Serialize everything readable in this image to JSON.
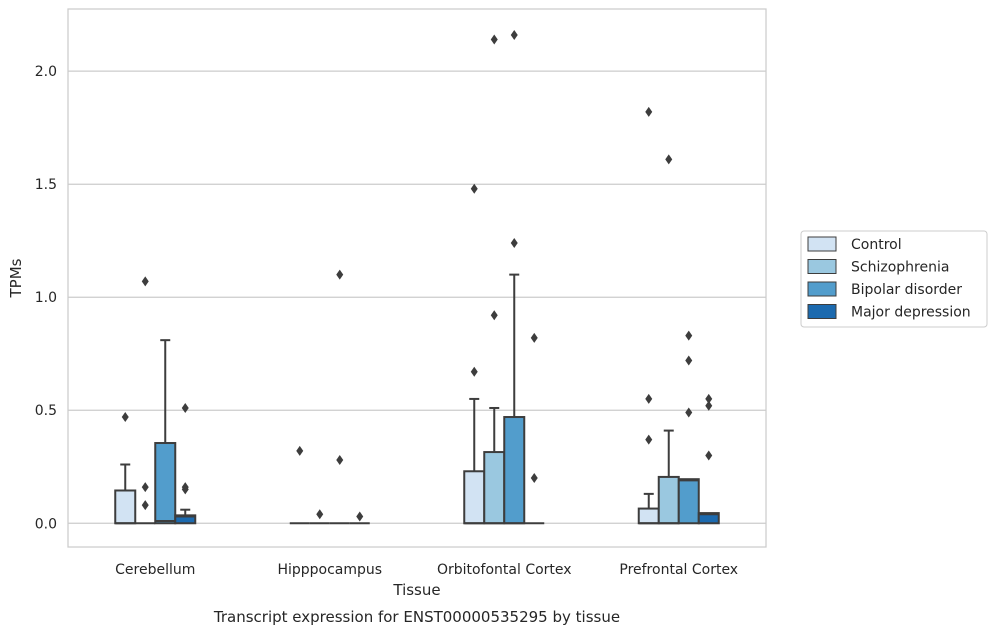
{
  "chart_data": {
    "type": "box",
    "title": "",
    "caption": "Transcript expression for ENST00000535295 by tissue",
    "xlabel": "Tissue",
    "ylabel": "TPMs",
    "ylim": [
      -0.105,
      2.275
    ],
    "yticks": [
      "0.0",
      "0.5",
      "1.0",
      "1.5",
      "2.0"
    ],
    "ytick_values": [
      0,
      0.5,
      1.0,
      1.5,
      2.0
    ],
    "grid": true,
    "legend_position": "right-center",
    "categories": [
      "Cerebellum",
      "Hipppocampus",
      "Orbitofontal Cortex",
      "Prefrontal Cortex"
    ],
    "series": [
      {
        "name": "Control",
        "color": "#d2e3f3",
        "boxes": [
          {
            "q1": 0,
            "median": 0,
            "q3": 0.145,
            "whisker_low": 0,
            "whisker_high": 0.26,
            "outliers": [
              0.47
            ]
          },
          {
            "q1": 0,
            "median": 0,
            "q3": 0,
            "whisker_low": 0,
            "whisker_high": 0,
            "outliers": [
              0.32
            ]
          },
          {
            "q1": 0,
            "median": 0,
            "q3": 0.23,
            "whisker_low": 0,
            "whisker_high": 0.55,
            "outliers": [
              0.67,
              1.48
            ]
          },
          {
            "q1": 0,
            "median": 0,
            "q3": 0.065,
            "whisker_low": 0,
            "whisker_high": 0.13,
            "outliers": [
              0.37,
              0.55,
              1.82
            ]
          }
        ]
      },
      {
        "name": "Schizophrenia",
        "color": "#9ac8e0",
        "boxes": [
          {
            "q1": 0,
            "median": 0,
            "q3": 0,
            "whisker_low": 0,
            "whisker_high": 0,
            "outliers": [
              0.08,
              0.16,
              1.07
            ]
          },
          {
            "q1": 0,
            "median": 0,
            "q3": 0,
            "whisker_low": 0,
            "whisker_high": 0,
            "outliers": [
              0.04
            ]
          },
          {
            "q1": 0,
            "median": 0,
            "q3": 0.315,
            "whisker_low": 0,
            "whisker_high": 0.51,
            "outliers": [
              0.92,
              2.14
            ]
          },
          {
            "q1": 0,
            "median": 0,
            "q3": 0.205,
            "whisker_low": 0,
            "whisker_high": 0.41,
            "outliers": [
              1.61
            ]
          }
        ]
      },
      {
        "name": "Bipolar disorder",
        "color": "#529dcc",
        "boxes": [
          {
            "q1": 0,
            "median": 0.01,
            "q3": 0.355,
            "whisker_low": 0,
            "whisker_high": 0.81,
            "outliers": []
          },
          {
            "q1": 0,
            "median": 0,
            "q3": 0,
            "whisker_low": 0,
            "whisker_high": 0,
            "outliers": [
              0.28,
              1.1
            ]
          },
          {
            "q1": 0,
            "median": 0,
            "q3": 0.47,
            "whisker_low": 0,
            "whisker_high": 1.1,
            "outliers": [
              1.24,
              2.16
            ]
          },
          {
            "q1": 0,
            "median": 0.19,
            "q3": 0.195,
            "whisker_low": 0,
            "whisker_high": 0.195,
            "outliers": [
              0.49,
              0.72,
              0.83
            ]
          }
        ]
      },
      {
        "name": "Major depression",
        "color": "#1c6aaf",
        "boxes": [
          {
            "q1": 0,
            "median": 0.03,
            "q3": 0.035,
            "whisker_low": 0,
            "whisker_high": 0.06,
            "outliers": [
              0.15,
              0.16,
              0.51
            ]
          },
          {
            "q1": 0,
            "median": 0,
            "q3": 0,
            "whisker_low": 0,
            "whisker_high": 0,
            "outliers": [
              0.03
            ]
          },
          {
            "q1": 0,
            "median": 0,
            "q3": 0,
            "whisker_low": 0,
            "whisker_high": 0,
            "outliers": [
              0.2,
              0.82
            ]
          },
          {
            "q1": 0,
            "median": 0.04,
            "q3": 0.045,
            "whisker_low": 0,
            "whisker_high": 0.045,
            "outliers": [
              0.3,
              0.52,
              0.55
            ]
          }
        ]
      }
    ]
  }
}
